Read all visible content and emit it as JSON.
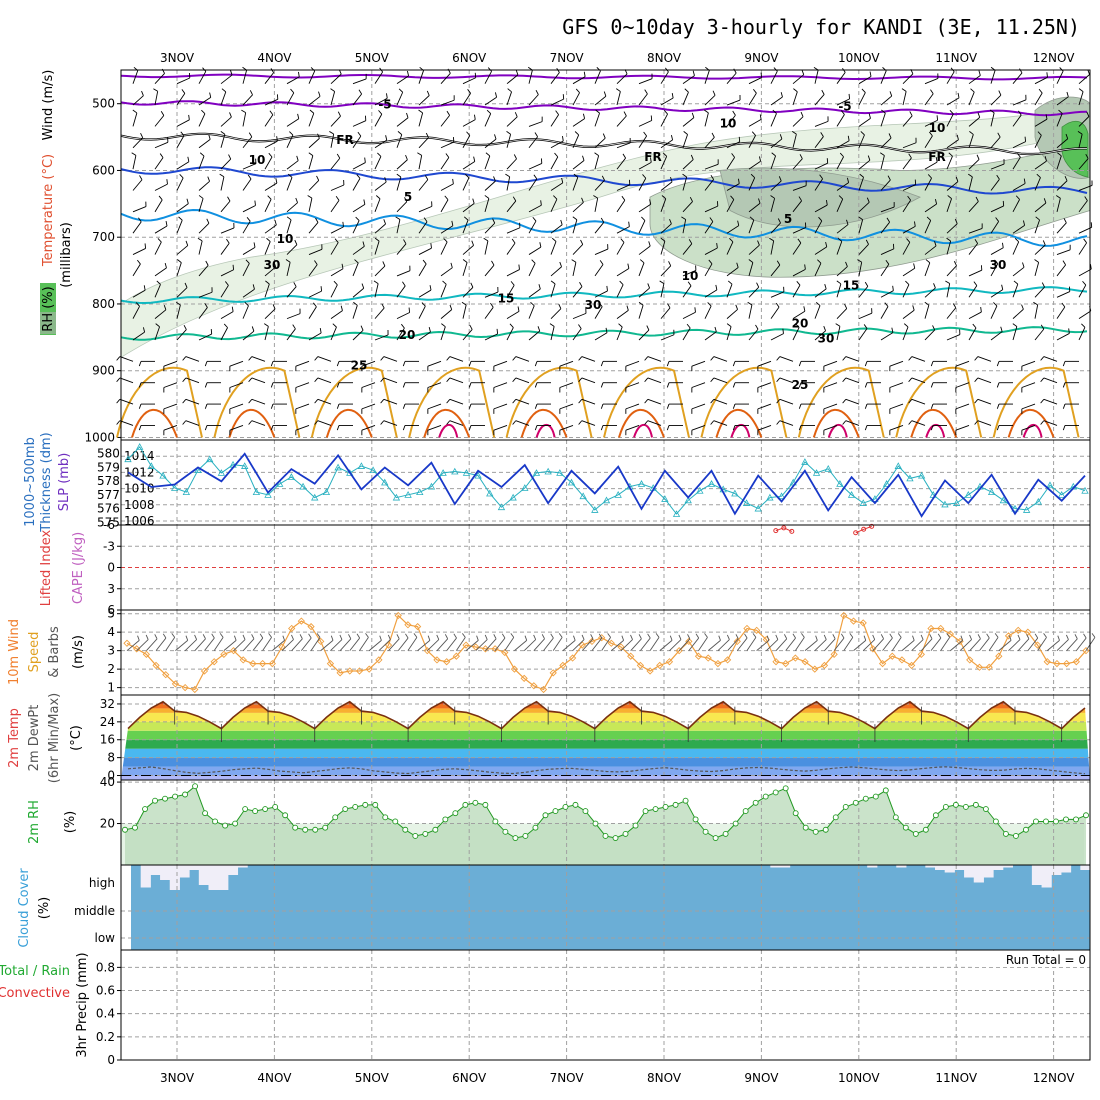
{
  "title": "GFS 0~10day 3-hourly for KANDI (3E, 11.25N)",
  "colors": {
    "frame": "#000000",
    "grid": "#a0a0a0",
    "temp_purple": "#8000c0",
    "temp_blue": "#1f48d0",
    "temp_lightblue": "#1090e0",
    "temp_cyan": "#10b8c0",
    "temp_teal": "#10b890",
    "temp_orange": "#e0a020",
    "temp_darkorange": "#e06010",
    "temp_magenta": "#d0006a",
    "rh_light": "#e8f2e4",
    "rh_mid": "#cbe0c8",
    "rh_dark": "#b4c8b4",
    "rh_green": "#58c058",
    "slp": "#1838c8",
    "thickness": "#28b0c0",
    "lifted_zero": "#e04040",
    "cape": "#e03030",
    "wind10": "#f0a040",
    "rh2m_line": "#229922",
    "rh2m_fill": "#b8dab8",
    "rh2m_bg": "#e6f3e6",
    "cloud": "#6baed6",
    "cloud_bg": "#f0eef8"
  },
  "dates": [
    "3NOV",
    "4NOV",
    "5NOV",
    "6NOV",
    "7NOV",
    "8NOV",
    "9NOV",
    "10NOV",
    "11NOV",
    "12NOV"
  ],
  "upper": {
    "ylabel": "(millibars)",
    "title_parts": [
      "RH (%)",
      "Temperature (°C)",
      "Wind (m/s)"
    ],
    "pressure_ticks": [
      "500",
      "600",
      "700",
      "800",
      "900",
      "1000"
    ],
    "pressure_values": [
      500,
      600,
      700,
      800,
      900,
      1000
    ],
    "contour_labels": [
      {
        "text": "-5",
        "lat": 385,
        "p": 500,
        "c": "temp_purple"
      },
      {
        "text": "-5",
        "lat": 845,
        "p": 503,
        "c": "temp_purple"
      },
      {
        "text": "FR",
        "lat": 345,
        "p": 553,
        "c": "frame"
      },
      {
        "text": "FR",
        "lat": 653,
        "p": 578,
        "c": "frame"
      },
      {
        "text": "FR",
        "lat": 937,
        "p": 578,
        "c": "frame"
      },
      {
        "text": "5",
        "lat": 408,
        "p": 638,
        "c": "temp_blue"
      },
      {
        "text": "5",
        "lat": 788,
        "p": 671,
        "c": "temp_blue"
      },
      {
        "text": "10",
        "lat": 285,
        "p": 701,
        "c": "temp_lightblue"
      },
      {
        "text": "10",
        "lat": 690,
        "p": 757,
        "c": "temp_lightblue"
      },
      {
        "text": "15",
        "lat": 506,
        "p": 790,
        "c": "temp_cyan"
      },
      {
        "text": "15",
        "lat": 851,
        "p": 771,
        "c": "temp_cyan"
      },
      {
        "text": "20",
        "lat": 407,
        "p": 845,
        "c": "temp_teal"
      },
      {
        "text": "20",
        "lat": 800,
        "p": 828,
        "c": "temp_teal"
      },
      {
        "text": "25",
        "lat": 359,
        "p": 891,
        "c": "temp_orange"
      },
      {
        "text": "25",
        "lat": 800,
        "p": 920,
        "c": "temp_orange"
      },
      {
        "text": "10",
        "lat": 728,
        "p": 528,
        "c": "grid"
      },
      {
        "text": "10",
        "lat": 937,
        "p": 535,
        "c": "grid"
      },
      {
        "text": "10",
        "lat": 257,
        "p": 583,
        "c": "grid"
      },
      {
        "text": "30",
        "lat": 272,
        "p": 740,
        "c": "grid"
      },
      {
        "text": "30",
        "lat": 593,
        "p": 800,
        "c": "grid"
      },
      {
        "text": "30",
        "lat": 998,
        "p": 740,
        "c": "grid"
      },
      {
        "text": "30",
        "lat": 826,
        "p": 850,
        "c": "grid"
      }
    ]
  },
  "slp_panel": {
    "ylabel_left": "Thickness (dm)",
    "ylabel_left2": "1000~500mb",
    "ylabel_right": "SLP (mb)",
    "thickness_ticks": [
      "580",
      "579",
      "578",
      "577",
      "576",
      "575"
    ],
    "slp_ticks": [
      "1014",
      "1012",
      "1010",
      "1008",
      "1006"
    ],
    "slp_range": [
      1005.5,
      1016
    ],
    "thickness_range": [
      574.8,
      581
    ],
    "slp": [
      1012,
      1011.1,
      1010.2,
      1009.0,
      1010.5,
      1011.6,
      1012.6,
      1011.5,
      1010.9,
      1012.4,
      1014.3,
      1011.6,
      1009.5,
      1011.4,
      1012.4,
      1011.6,
      1010.6,
      1012.2,
      1014.1,
      1012.3,
      1009.9,
      1011.1,
      1012.6,
      1011.9,
      1010.4,
      1011.6,
      1013.2,
      1010.6,
      1008.1,
      1009.7,
      1012.2,
      1012.0,
      1010.2,
      1011.1,
      1012.9,
      1010.3,
      1008.2,
      1010.1,
      1012.2,
      1011.6,
      1009.4,
      1010.8,
      1012.7,
      1010.1,
      1007.5,
      1009.8,
      1012.2,
      1011.1,
      1008.9,
      1010.1,
      1012.2,
      1009.6,
      1006.9,
      1009.3,
      1011.6,
      1010.7,
      1008.4,
      1010.0,
      1012.2,
      1009.7,
      1007.3,
      1009.2,
      1011.4,
      1010.2,
      1008.2,
      1009.9,
      1011.7,
      1009.3,
      1006.6,
      1008.7,
      1011.0,
      1010.3,
      1008.2,
      1009.4,
      1011.7,
      1009.4,
      1006.9,
      1008.8,
      1011.1,
      1010.6,
      1008.5,
      1010.1,
      1011.6
    ],
    "thickness": [
      579.6,
      580.5,
      579.1,
      578.4,
      577.5,
      577.2,
      578.8,
      579.6,
      578.6,
      579.2,
      579.1,
      577.2,
      577.0,
      577.8,
      578.3,
      577.6,
      576.8,
      577.2,
      579.0,
      578.6,
      579.1,
      578.8,
      577.9,
      576.8,
      577.0,
      577.2,
      577.6,
      578.6,
      578.7,
      578.6,
      578.4,
      577.1,
      576.1,
      576.8,
      577.5,
      578.6,
      578.7,
      578.6,
      577.9,
      576.9,
      575.9,
      576.6,
      577.0,
      577.6,
      577.8,
      577.5,
      576.7,
      575.6,
      576.6,
      577.3,
      577.8,
      577.4,
      577.1,
      576.4,
      576.0,
      576.8,
      576.9,
      577.9,
      579.4,
      578.6,
      578.9,
      577.8,
      577.0,
      576.4,
      576.7,
      577.8,
      579.1,
      578.2,
      578.4,
      577.0,
      576.3,
      576.4,
      577.0,
      577.6,
      577.2,
      576.6,
      576.0,
      575.9,
      576.5,
      577.7,
      577.0,
      577.6,
      577.3
    ]
  },
  "lifted_panel": {
    "ylabel_left": "Lifted Index",
    "ylabel_right": "CAPE (J/kg)",
    "ticks": [
      "-6",
      "-3",
      "0",
      "3",
      "6"
    ],
    "range": [
      -6,
      6
    ],
    "cape_marks": [
      {
        "t": 6.23,
        "v": [
          5.2,
          5.6,
          5.1
        ]
      },
      {
        "t": 7.05,
        "v": [
          4.9,
          5.4,
          5.8
        ]
      }
    ]
  },
  "wind_panel": {
    "ylabel": "10m Wind Speed & Barbs",
    "ylabel_unit": "(m/s)",
    "ticks": [
      "5",
      "4",
      "3",
      "2",
      "1"
    ],
    "range": [
      0.6,
      5.2
    ],
    "speed": [
      3.4,
      3.1,
      2.8,
      2.2,
      1.7,
      1.2,
      1.0,
      0.9,
      1.9,
      2.4,
      2.8,
      3.0,
      2.5,
      2.3,
      2.3,
      2.3,
      3.2,
      4.2,
      4.6,
      4.3,
      3.5,
      2.3,
      1.8,
      1.9,
      1.9,
      2.0,
      2.5,
      3.3,
      4.9,
      4.4,
      4.3,
      3.0,
      2.5,
      2.4,
      2.7,
      3.3,
      3.2,
      3.1,
      3.1,
      2.9,
      2.0,
      1.5,
      1.1,
      0.9,
      1.8,
      2.2,
      2.6,
      3.3,
      3.5,
      3.7,
      3.4,
      3.2,
      2.7,
      2.2,
      1.9,
      2.2,
      2.4,
      3.0,
      3.5,
      2.7,
      2.6,
      2.3,
      2.5,
      3.5,
      4.2,
      4.1,
      3.6,
      2.4,
      2.3,
      2.6,
      2.4,
      2.0,
      2.2,
      2.8,
      4.9,
      4.6,
      4.5,
      3.1,
      2.3,
      2.7,
      2.5,
      2.2,
      2.8,
      4.2,
      4.2,
      3.9,
      3.5,
      2.5,
      2.1,
      2.1,
      2.7,
      3.8,
      4.1,
      4.0,
      3.3,
      2.4,
      2.3,
      2.3,
      2.4,
      3.0
    ]
  },
  "temp_panel": {
    "ylabel": "2m Temp",
    "ylabel2": "2m DewPt",
    "ylabel3": "(6hr Min/Max)",
    "ylabel_unit": "(°C)",
    "ticks": [
      "32",
      "24",
      "16",
      "8",
      "0"
    ],
    "range": [
      -2,
      36
    ],
    "temp_min": 21,
    "temp_max": 34,
    "dewpt": [
      3.0,
      3.4,
      3.8,
      3.1,
      2.2,
      1.4,
      1.0,
      1.4,
      1.9,
      2.6,
      3.0,
      3.3,
      2.8,
      2.0,
      1.6,
      1.2,
      1.8,
      2.4,
      3.1,
      3.4,
      3.0,
      2.1,
      1.6,
      1.1,
      0.9,
      1.5,
      2.1,
      2.8,
      3.0,
      2.6,
      2.1,
      1.5,
      1.1,
      0.9,
      1.4,
      2.2,
      2.8,
      3.1,
      3.2,
      2.8,
      2.3,
      1.8,
      1.6,
      1.9,
      2.5,
      3.1,
      3.5,
      3.0,
      2.4,
      2.0,
      1.8,
      2.2,
      2.9,
      3.4,
      3.6,
      3.3,
      2.8,
      2.3,
      2.0,
      2.4,
      3.0,
      3.5,
      3.8,
      3.5,
      3.0,
      2.5,
      2.2,
      2.5,
      3.1,
      3.6,
      3.9,
      3.6,
      3.1,
      2.6,
      2.3,
      2.4,
      2.9,
      3.2,
      3.0,
      2.4,
      1.8,
      1.2,
      0.8
    ]
  },
  "rh_panel": {
    "ylabel": "2m RH",
    "ylabel_unit": "(%)",
    "ticks": [
      "40",
      "20"
    ],
    "range": [
      0,
      41
    ],
    "rh": [
      17,
      18,
      27,
      31,
      32,
      33,
      34,
      38,
      25,
      21,
      19,
      20,
      27,
      26,
      27,
      28,
      24,
      18,
      17,
      17,
      18,
      23,
      27,
      28,
      29,
      29,
      23,
      21,
      17,
      14,
      15,
      17,
      22,
      25,
      29,
      30,
      29,
      21,
      16,
      13,
      14,
      18,
      24,
      26,
      28,
      29,
      26,
      20,
      14,
      13,
      15,
      19,
      26,
      27,
      28,
      29,
      31,
      22,
      16,
      13,
      15,
      20,
      26,
      30,
      33,
      35,
      37,
      25,
      18,
      16,
      17,
      23,
      28,
      30,
      32,
      33,
      36,
      23,
      18,
      15,
      17,
      24,
      28,
      29,
      28,
      29,
      27,
      21,
      15,
      14,
      17,
      21,
      21,
      21,
      22,
      22,
      24
    ]
  },
  "cloud_panel": {
    "ylabel": "Cloud Cover",
    "ylabel_unit": "(%)",
    "levels": [
      "high",
      "middle",
      "low"
    ],
    "high_gap": [
      0.0,
      0.9,
      0.4,
      0.6,
      1.0,
      0.5,
      0.2,
      0.8,
      1.0,
      1.0,
      0.4,
      0.1,
      0.0,
      0.0,
      0.0,
      0.0,
      0.0,
      0.0,
      0.0,
      0.0,
      0.0,
      0.0,
      0.0,
      0.0,
      0.0,
      0.0,
      0.0,
      0.0,
      0.0,
      0.0,
      0.0,
      0.0,
      0.0,
      0.0,
      0.0,
      0.0,
      0.0,
      0.0,
      0.0,
      0.0,
      0.0,
      0.0,
      0.0,
      0.0,
      0.0,
      0.0,
      0.0,
      0.0,
      0.0,
      0.0,
      0.0,
      0.0,
      0.0,
      0.0,
      0.0,
      0.0,
      0.0,
      0.0,
      0.0,
      0.0,
      0.0,
      0.0,
      0.0,
      0.0,
      0.0,
      0.0,
      0.1,
      0.1,
      0.0,
      0.0,
      0.0,
      0.0,
      0.0,
      0.0,
      0.0,
      0.0,
      0.1,
      0.0,
      0.0,
      0.1,
      0.0,
      0.0,
      0.1,
      0.2,
      0.3,
      0.2,
      0.5,
      0.7,
      0.5,
      0.2,
      0.1,
      0.0,
      0.0,
      0.8,
      0.9,
      0.4,
      0.3,
      0.0,
      0.2
    ]
  },
  "precip_panel": {
    "ylabel": "3hr Precip (mm)",
    "ylabel2": "Total / Rain",
    "ylabel3": "Convective",
    "ticks": [
      "0.8",
      "0.6",
      "0.4",
      "0.2",
      "0"
    ],
    "run_total": "Run Total = 0"
  }
}
